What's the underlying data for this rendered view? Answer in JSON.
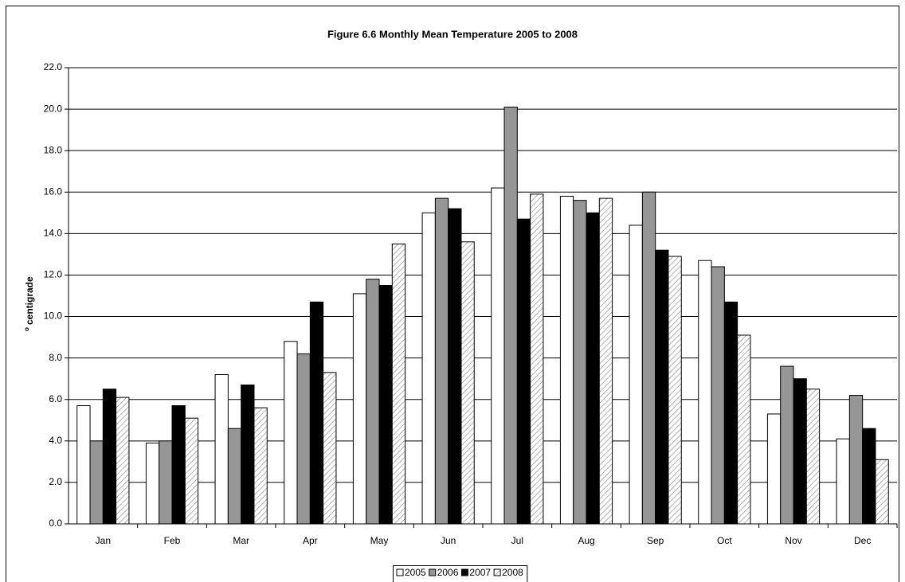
{
  "chart_data": {
    "type": "bar",
    "title": "Figure 6.6 Monthly Mean Temperature 2005 to 2008",
    "y_label": [
      "o",
      "centigrade"
    ],
    "categories": [
      "Jan",
      "Feb",
      "Mar",
      "Apr",
      "May",
      "Jun",
      "Jul",
      "Aug",
      "Sep",
      "Oct",
      "Nov",
      "Dec"
    ],
    "series": [
      {
        "name": "2005",
        "color": "#ffffff",
        "values": [
          5.7,
          3.9,
          7.2,
          8.8,
          11.1,
          15.0,
          16.2,
          15.8,
          14.4,
          12.7,
          5.3,
          4.1
        ]
      },
      {
        "name": "2006",
        "color": "#969696",
        "values": [
          4.0,
          4.0,
          4.6,
          8.2,
          11.8,
          15.7,
          20.1,
          15.6,
          16.0,
          12.4,
          7.6,
          6.2
        ]
      },
      {
        "name": "2007",
        "color": "#000000",
        "values": [
          6.5,
          5.7,
          6.7,
          10.7,
          11.5,
          15.2,
          14.7,
          15.0,
          13.2,
          10.7,
          7.0,
          4.6
        ]
      },
      {
        "name": "2008",
        "color": "#808080",
        "hatch": true,
        "values": [
          6.1,
          5.1,
          5.6,
          7.3,
          13.5,
          13.6,
          15.9,
          15.7,
          12.9,
          9.1,
          6.5,
          3.1
        ]
      }
    ],
    "ylim": [
      0,
      22
    ],
    "yticks": [
      {
        "value": 0,
        "label": "0.0"
      },
      {
        "value": 2,
        "label": "2.0"
      },
      {
        "value": 4,
        "label": "4.0"
      },
      {
        "value": 6,
        "label": "6.0"
      },
      {
        "value": 8,
        "label": "8.0"
      },
      {
        "value": 10,
        "label": "10.0"
      },
      {
        "value": 12,
        "label": "12.0"
      },
      {
        "value": 14,
        "label": "14.0"
      },
      {
        "value": 16,
        "label": "16.0"
      },
      {
        "value": 18,
        "label": "18.0"
      },
      {
        "value": 20,
        "label": "20.0"
      },
      {
        "value": 22,
        "label": "22.0"
      }
    ],
    "grid": true,
    "legend": "bottom"
  }
}
